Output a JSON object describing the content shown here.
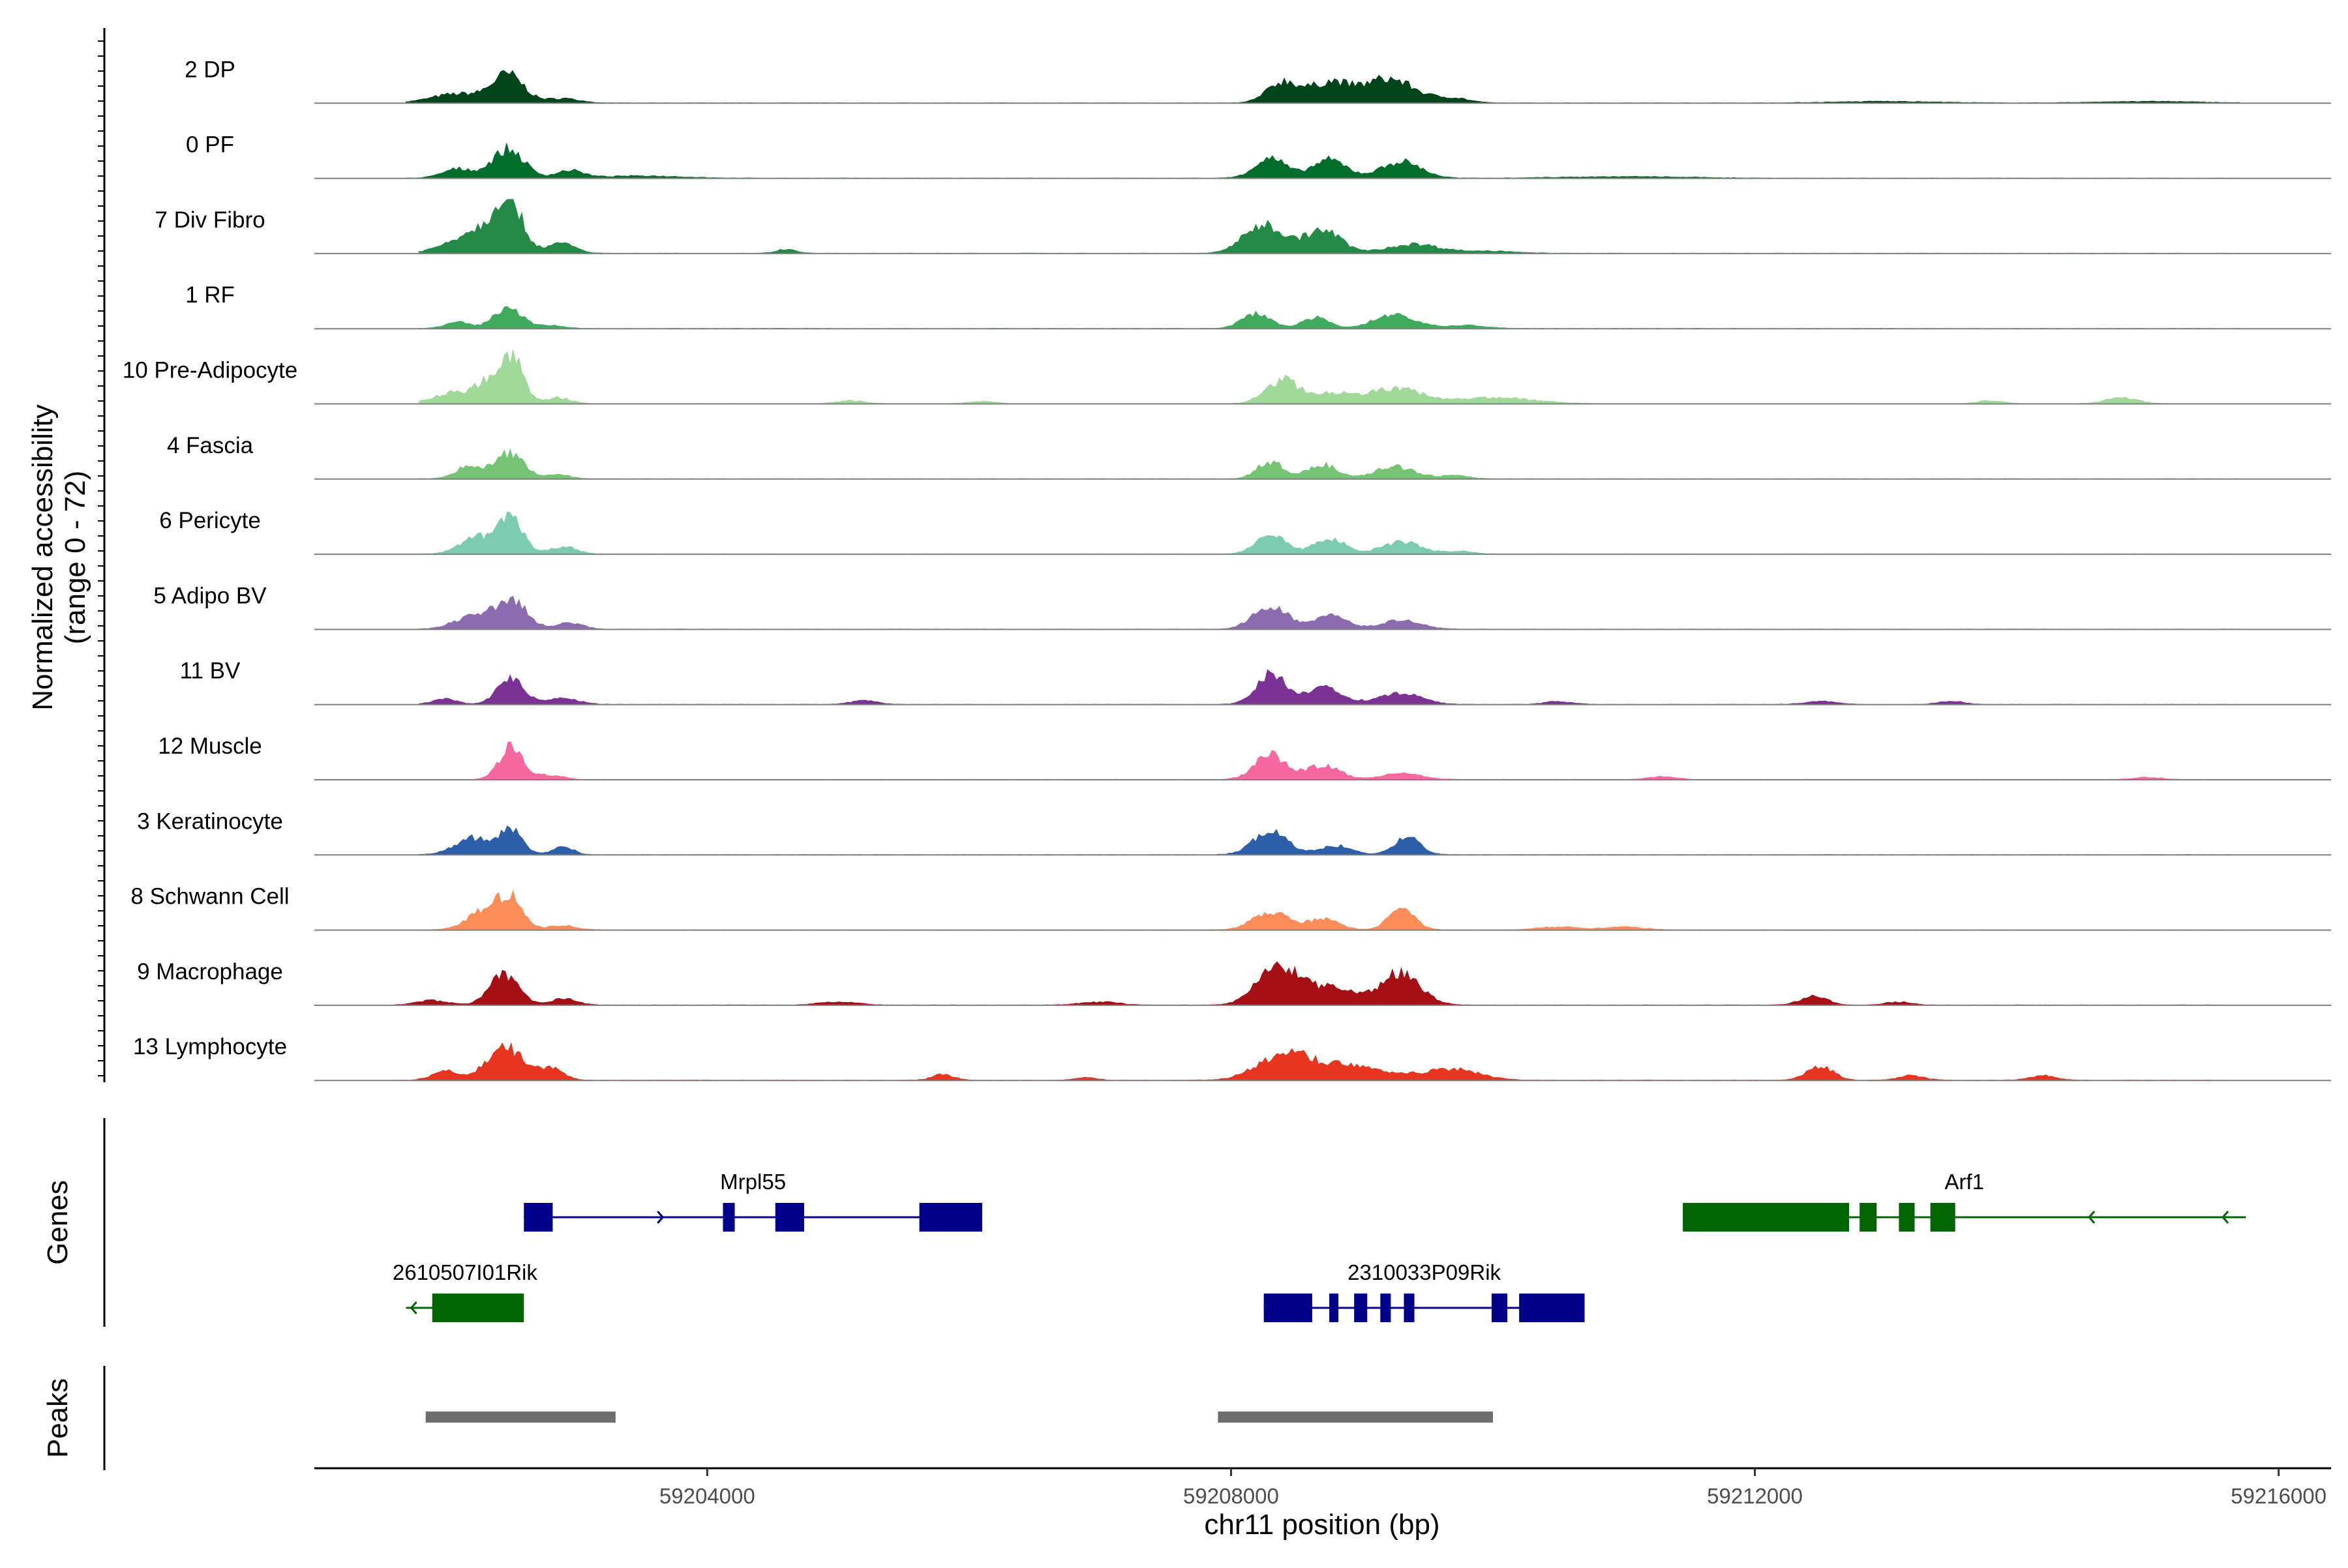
{
  "chart_data": {
    "type": "area",
    "title": "",
    "chromosome": "chr11",
    "xlabel": "chr11 position (bp)",
    "ylabel_line1": "Normalized accessibility",
    "ylabel_line2": "(range 0 - 72)",
    "y_range": [
      0,
      72
    ],
    "xlim": [
      59201000,
      59216400
    ],
    "x_ticks": [
      59204000,
      59208000,
      59212000,
      59216000
    ],
    "x_tick_labels": [
      "59204000",
      "59208000",
      "59212000",
      "59216000"
    ],
    "genes_label": "Genes",
    "peaks_label": "Peaks",
    "peak_centers": [
      59202450,
      59209250
    ],
    "tracks": [
      {
        "name": "2 DP",
        "color": "#00441b",
        "region": [
          59201700,
          59215700
        ],
        "peaks": [
          [
            59202100,
            12,
            200
          ],
          [
            59202480,
            36,
            120
          ],
          [
            59202900,
            6,
            120
          ],
          [
            59208400,
            28,
            120
          ],
          [
            59208750,
            26,
            140
          ],
          [
            59209200,
            32,
            200
          ],
          [
            59209700,
            6,
            120
          ],
          [
            59213000,
            2,
            400
          ],
          [
            59215000,
            2,
            400
          ]
        ]
      },
      {
        "name": "0 PF",
        "color": "#006d2c",
        "region": [
          59201700,
          59215700
        ],
        "peaks": [
          [
            59202100,
            12,
            120
          ],
          [
            59202480,
            38,
            120
          ],
          [
            59202950,
            10,
            100
          ],
          [
            59208300,
            26,
            120
          ],
          [
            59208750,
            24,
            130
          ],
          [
            59209300,
            22,
            150
          ],
          [
            59203500,
            3,
            300
          ],
          [
            59211000,
            2,
            500
          ]
        ]
      },
      {
        "name": "7 Div Fibro",
        "color": "#238b45",
        "region": [
          59201800,
          59215700
        ],
        "peaks": [
          [
            59202300,
            34,
            220
          ],
          [
            59202480,
            58,
            90
          ],
          [
            59202900,
            12,
            100
          ],
          [
            59204600,
            5,
            80
          ],
          [
            59208250,
            38,
            150
          ],
          [
            59208700,
            30,
            140
          ],
          [
            59209400,
            12,
            200
          ],
          [
            59210000,
            3,
            200
          ]
        ]
      },
      {
        "name": "1 RF",
        "color": "#41ab5d",
        "region": [
          59201800,
          59215700
        ],
        "peaks": [
          [
            59202100,
            8,
            100
          ],
          [
            59202480,
            30,
            100
          ],
          [
            59202800,
            4,
            100
          ],
          [
            59208200,
            20,
            110
          ],
          [
            59208650,
            14,
            100
          ],
          [
            59209250,
            18,
            160
          ],
          [
            59209800,
            4,
            150
          ]
        ]
      },
      {
        "name": "10 Pre-Adipocyte",
        "color": "#a1d99b",
        "region": [
          59201800,
          59215700
        ],
        "peaks": [
          [
            59202050,
            14,
            150
          ],
          [
            59202350,
            30,
            110
          ],
          [
            59202520,
            52,
            80
          ],
          [
            59202850,
            8,
            100
          ],
          [
            59208400,
            32,
            130
          ],
          [
            59208800,
            14,
            130
          ],
          [
            59209250,
            20,
            200
          ],
          [
            59210000,
            8,
            300
          ],
          [
            59213800,
            4,
            100
          ],
          [
            59214800,
            8,
            120
          ],
          [
            59205100,
            4,
            100
          ],
          [
            59206100,
            3,
            100
          ]
        ]
      },
      {
        "name": "4 Fascia",
        "color": "#74c476",
        "region": [
          59201800,
          59215700
        ],
        "peaks": [
          [
            59202200,
            18,
            110
          ],
          [
            59202500,
            34,
            100
          ],
          [
            59202850,
            6,
            100
          ],
          [
            59208300,
            22,
            100
          ],
          [
            59208700,
            18,
            120
          ],
          [
            59209250,
            16,
            150
          ],
          [
            59209700,
            4,
            120
          ]
        ]
      },
      {
        "name": "6 Pericyte",
        "color": "#7bcbb1",
        "region": [
          59201800,
          59215700
        ],
        "peaks": [
          [
            59202250,
            22,
            130
          ],
          [
            59202500,
            46,
            90
          ],
          [
            59202900,
            10,
            100
          ],
          [
            59208300,
            28,
            110
          ],
          [
            59208750,
            20,
            120
          ],
          [
            59209300,
            16,
            150
          ],
          [
            59209750,
            4,
            100
          ]
        ]
      },
      {
        "name": "5 Adipo BV",
        "color": "#8c6bb1",
        "region": [
          59201800,
          59215700
        ],
        "peaks": [
          [
            59202200,
            16,
            140
          ],
          [
            59202500,
            38,
            120
          ],
          [
            59202950,
            8,
            100
          ],
          [
            59208300,
            30,
            130
          ],
          [
            59208750,
            18,
            130
          ],
          [
            59209300,
            12,
            150
          ]
        ]
      },
      {
        "name": "11 BV",
        "color": "#7b3294",
        "region": [
          59201800,
          59215700
        ],
        "peaks": [
          [
            59202000,
            8,
            90
          ],
          [
            59202500,
            34,
            100
          ],
          [
            59202900,
            8,
            120
          ],
          [
            59208300,
            40,
            110
          ],
          [
            59208700,
            22,
            150
          ],
          [
            59209300,
            14,
            160
          ],
          [
            59205200,
            5,
            100
          ],
          [
            59210500,
            4,
            100
          ],
          [
            59212500,
            4,
            120
          ],
          [
            59213500,
            4,
            100
          ]
        ]
      },
      {
        "name": "12 Muscle",
        "color": "#f768a1",
        "region": [
          59202200,
          59215500
        ],
        "peaks": [
          [
            59202500,
            42,
            90
          ],
          [
            59202800,
            6,
            100
          ],
          [
            59208300,
            32,
            120
          ],
          [
            59208700,
            18,
            130
          ],
          [
            59209300,
            8,
            150
          ],
          [
            59211300,
            4,
            100
          ],
          [
            59215000,
            3,
            100
          ]
        ]
      },
      {
        "name": "3 Keratinocyte",
        "color": "#2c5fa7",
        "region": [
          59201800,
          59215700
        ],
        "peaks": [
          [
            59202200,
            22,
            130
          ],
          [
            59202500,
            34,
            90
          ],
          [
            59202900,
            10,
            80
          ],
          [
            59208300,
            30,
            130
          ],
          [
            59208800,
            12,
            120
          ],
          [
            59209350,
            22,
            100
          ]
        ]
      },
      {
        "name": "8 Schwann Cell",
        "color": "#fc8d59",
        "region": [
          59201800,
          59215700
        ],
        "peaks": [
          [
            59202300,
            24,
            130
          ],
          [
            59202500,
            38,
            100
          ],
          [
            59202900,
            6,
            100
          ],
          [
            59208300,
            24,
            130
          ],
          [
            59208700,
            14,
            120
          ],
          [
            59209300,
            28,
            100
          ],
          [
            59210500,
            4,
            150
          ],
          [
            59211000,
            4,
            150
          ]
        ]
      },
      {
        "name": "9 Macrophage",
        "color": "#a50f15",
        "region": [
          59201600,
          59215600
        ],
        "peaks": [
          [
            59201900,
            6,
            120
          ],
          [
            59202450,
            40,
            110
          ],
          [
            59202900,
            8,
            100
          ],
          [
            59208350,
            50,
            150
          ],
          [
            59208750,
            22,
            200
          ],
          [
            59209300,
            42,
            150
          ],
          [
            59212450,
            12,
            100
          ],
          [
            59213100,
            4,
            100
          ],
          [
            59205000,
            4,
            150
          ],
          [
            59207000,
            4,
            150
          ]
        ]
      },
      {
        "name": "13 Lymphocyte",
        "color": "#e8351f",
        "region": [
          59201600,
          59215600
        ],
        "peaks": [
          [
            59202000,
            12,
            100
          ],
          [
            59202450,
            46,
            130
          ],
          [
            59202800,
            16,
            100
          ],
          [
            59208400,
            30,
            200
          ],
          [
            59208900,
            20,
            300
          ],
          [
            59209700,
            14,
            200
          ],
          [
            59212500,
            18,
            100
          ],
          [
            59213200,
            6,
            100
          ],
          [
            59214200,
            6,
            100
          ],
          [
            59205800,
            8,
            80
          ],
          [
            59206900,
            4,
            80
          ]
        ]
      }
    ],
    "genes": [
      {
        "name": "Mrpl55",
        "strand": "+",
        "color": "#00008b",
        "row": 0,
        "start": 59202600,
        "end": 59206100,
        "exons": [
          [
            59202600,
            59202820
          ],
          [
            59204120,
            59204210
          ],
          [
            59204520,
            59204740
          ],
          [
            59205620,
            59206100
          ]
        ]
      },
      {
        "name": "Arf1",
        "strand": "-",
        "color": "#006400",
        "row": 0,
        "start": 59211450,
        "end": 59215750,
        "exons": [
          [
            59211450,
            59212720
          ],
          [
            59212800,
            59212930
          ],
          [
            59213100,
            59213220
          ],
          [
            59213340,
            59213530
          ]
        ]
      },
      {
        "name": "2610507I01Rik",
        "strand": "-",
        "color": "#006400",
        "row": 1,
        "start": 59201700,
        "end": 59202600,
        "exons": [
          [
            59201900,
            59202600
          ]
        ]
      },
      {
        "name": "2310033P09Rik",
        "strand": "+",
        "color": "#00008b",
        "row": 1,
        "start": 59208250,
        "end": 59210700,
        "exons": [
          [
            59208250,
            59208620
          ],
          [
            59208750,
            59208820
          ],
          [
            59208940,
            59209040
          ],
          [
            59209140,
            59209220
          ],
          [
            59209320,
            59209400
          ],
          [
            59209990,
            59210110
          ],
          [
            59210200,
            59210700
          ]
        ]
      }
    ],
    "peaks": [
      {
        "start": 59201850,
        "end": 59203300
      },
      {
        "start": 59207900,
        "end": 59210000
      }
    ]
  }
}
